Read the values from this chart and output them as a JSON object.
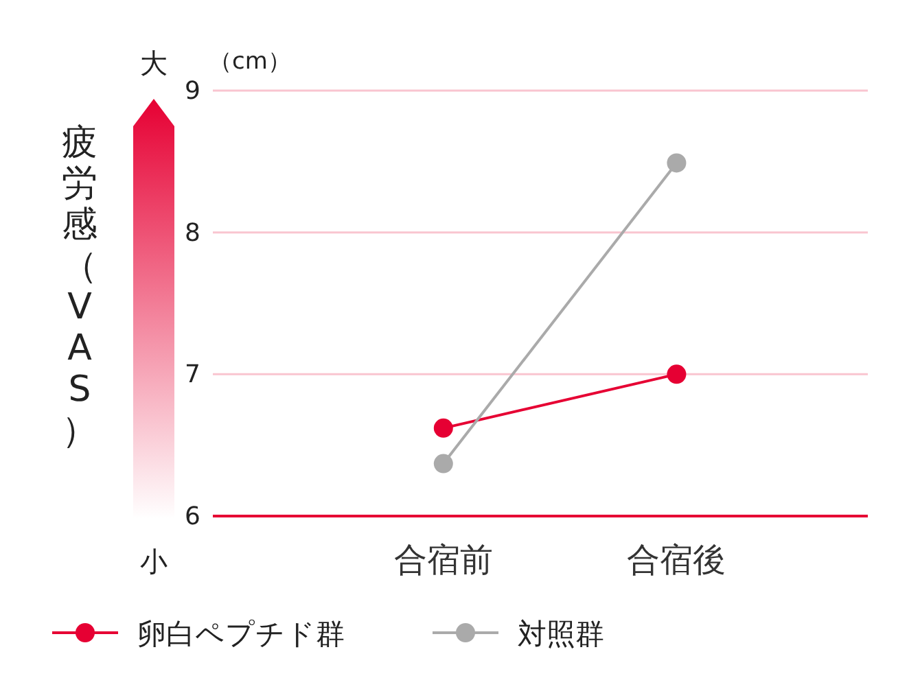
{
  "chart_data": {
    "type": "line",
    "ylabel": "疲労感（VAS）",
    "categories": [
      "合宿前",
      "合宿後"
    ],
    "series": [
      {
        "name": "卵白ペプチド群",
        "color": "#e60033",
        "values": [
          6.62,
          7.0
        ]
      },
      {
        "name": "対照群",
        "color": "#aaaaaa",
        "values": [
          6.37,
          8.49
        ]
      }
    ],
    "ylim": [
      6,
      9
    ],
    "yticks": [
      6,
      7,
      8,
      9
    ],
    "grid": "y",
    "marker": "circle",
    "legend": "bottom",
    "annotations": [
      "（cm）",
      "大",
      "小"
    ]
  }
}
